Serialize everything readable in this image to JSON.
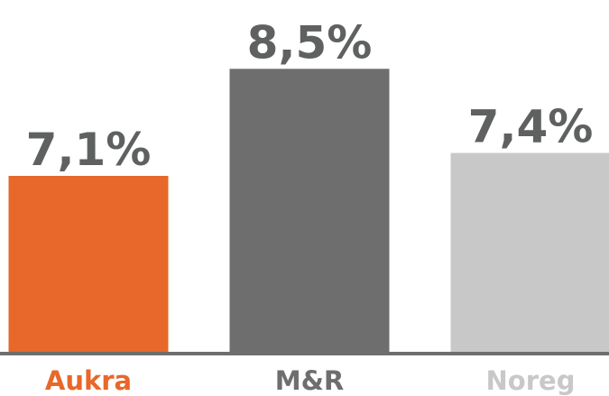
{
  "chart_data": {
    "type": "bar",
    "categories": [
      "Aukra",
      "M&R",
      "Noreg"
    ],
    "values": [
      7.1,
      8.5,
      7.4
    ],
    "value_labels": [
      "7,1%",
      "8,5%",
      "7,4%"
    ],
    "colors": [
      "#e8672a",
      "#6d6e6d",
      "#c8c8c8"
    ],
    "label_color": "#5f6161",
    "ylim": [
      4.8,
      9.4
    ]
  }
}
